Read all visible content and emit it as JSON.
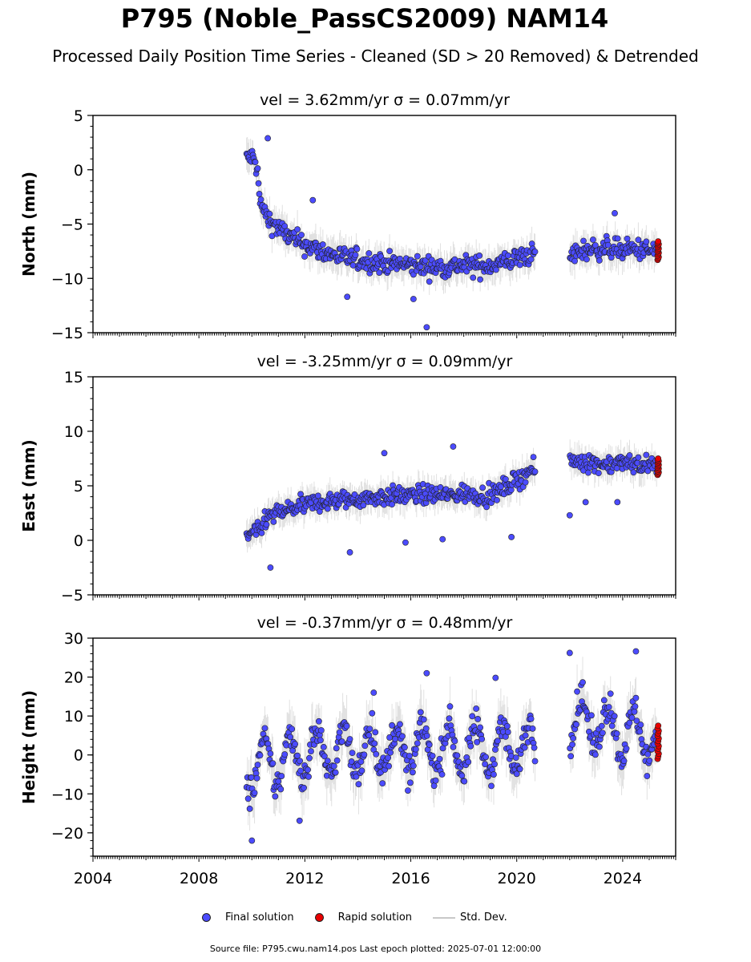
{
  "title": "P795 (Noble_PassCS2009) NAM14",
  "subtitle": "Processed Daily Position Time Series - Cleaned (SD > 20 Removed) & Detrended",
  "footer": "Source file: P795.cwu.nam14.pos  Last epoch plotted: 2025-07-01 12:00:00",
  "legend": {
    "final": "Final solution",
    "rapid": "Rapid solution",
    "stddev": "Std. Dev."
  },
  "colors": {
    "final": "#4b4bff",
    "rapid": "#e80000",
    "stddev": "#c8c8c8",
    "marker_edge": "#222222"
  },
  "chart_data": [
    {
      "type": "scatter",
      "ylabel": "North (mm)",
      "vel_label": "vel = 3.62mm/yr",
      "sigma_label": "σ = 0.07mm/yr",
      "xlim": [
        2004,
        2026
      ],
      "ylim": [
        -15,
        5
      ],
      "yticks": [
        -15,
        -10,
        -5,
        0,
        5
      ],
      "ytick_labels": [
        "−15",
        "−10",
        "−5",
        "0",
        "5"
      ],
      "x_gap": [
        2020.7,
        2022.0
      ],
      "rapid_start": 2025.3,
      "final_series": [
        {
          "x": 2009.8,
          "y": 1.0
        },
        {
          "x": 2010.0,
          "y": 1.2
        },
        {
          "x": 2010.2,
          "y": 0.2
        },
        {
          "x": 2010.3,
          "y": -3.0
        },
        {
          "x": 2010.6,
          "y": -4.5
        },
        {
          "x": 2011.0,
          "y": -5.4
        },
        {
          "x": 2011.5,
          "y": -6.3
        },
        {
          "x": 2012.0,
          "y": -6.9
        },
        {
          "x": 2012.5,
          "y": -7.4
        },
        {
          "x": 2013.0,
          "y": -7.8
        },
        {
          "x": 2013.5,
          "y": -8.1
        },
        {
          "x": 2014.0,
          "y": -8.3
        },
        {
          "x": 2014.5,
          "y": -8.5
        },
        {
          "x": 2015.0,
          "y": -8.6
        },
        {
          "x": 2015.5,
          "y": -8.7
        },
        {
          "x": 2016.0,
          "y": -8.8
        },
        {
          "x": 2016.5,
          "y": -8.9
        },
        {
          "x": 2017.0,
          "y": -9.0
        },
        {
          "x": 2017.5,
          "y": -8.9
        },
        {
          "x": 2018.0,
          "y": -8.8
        },
        {
          "x": 2018.5,
          "y": -8.9
        },
        {
          "x": 2019.0,
          "y": -8.8
        },
        {
          "x": 2019.5,
          "y": -8.5
        },
        {
          "x": 2020.0,
          "y": -8.2
        },
        {
          "x": 2020.5,
          "y": -7.8
        },
        {
          "x": 2022.0,
          "y": -8.0
        },
        {
          "x": 2022.5,
          "y": -7.4
        },
        {
          "x": 2023.0,
          "y": -7.3
        },
        {
          "x": 2023.5,
          "y": -7.2
        },
        {
          "x": 2024.0,
          "y": -7.4
        },
        {
          "x": 2024.5,
          "y": -7.3
        },
        {
          "x": 2025.0,
          "y": -7.5
        },
        {
          "x": 2025.3,
          "y": -7.3
        }
      ],
      "scatter_sd": 0.9,
      "outliers": [
        {
          "x": 2016.6,
          "y": -14.5
        },
        {
          "x": 2010.6,
          "y": 2.9
        },
        {
          "x": 2012.3,
          "y": -2.8
        },
        {
          "x": 2013.6,
          "y": -11.7
        },
        {
          "x": 2016.1,
          "y": -11.9
        },
        {
          "x": 2023.7,
          "y": -4.0
        }
      ],
      "rapid_range": [
        -8.3,
        -6.6
      ]
    },
    {
      "type": "scatter",
      "ylabel": "East (mm)",
      "vel_label": "vel = -3.25mm/yr",
      "sigma_label": "σ = 0.09mm/yr",
      "xlim": [
        2004,
        2026
      ],
      "ylim": [
        -5,
        15
      ],
      "yticks": [
        -5,
        0,
        5,
        10,
        15
      ],
      "ytick_labels": [
        "−5",
        "0",
        "5",
        "10",
        "15"
      ],
      "x_gap": [
        2020.7,
        2022.0
      ],
      "rapid_start": 2025.3,
      "final_series": [
        {
          "x": 2009.8,
          "y": 0.2
        },
        {
          "x": 2010.0,
          "y": 0.8
        },
        {
          "x": 2010.3,
          "y": 0.6
        },
        {
          "x": 2010.5,
          "y": 2.0
        },
        {
          "x": 2011.0,
          "y": 2.5
        },
        {
          "x": 2011.5,
          "y": 2.9
        },
        {
          "x": 2012.0,
          "y": 3.2
        },
        {
          "x": 2012.5,
          "y": 3.5
        },
        {
          "x": 2013.0,
          "y": 3.6
        },
        {
          "x": 2013.5,
          "y": 3.7
        },
        {
          "x": 2014.0,
          "y": 3.8
        },
        {
          "x": 2014.5,
          "y": 3.9
        },
        {
          "x": 2015.0,
          "y": 4.0
        },
        {
          "x": 2015.5,
          "y": 4.1
        },
        {
          "x": 2016.0,
          "y": 4.1
        },
        {
          "x": 2016.5,
          "y": 4.2
        },
        {
          "x": 2017.0,
          "y": 4.2
        },
        {
          "x": 2017.5,
          "y": 4.1
        },
        {
          "x": 2018.0,
          "y": 4.3
        },
        {
          "x": 2018.5,
          "y": 4.2
        },
        {
          "x": 2019.0,
          "y": 4.0
        },
        {
          "x": 2019.5,
          "y": 4.8
        },
        {
          "x": 2020.0,
          "y": 5.5
        },
        {
          "x": 2020.5,
          "y": 6.4
        },
        {
          "x": 2022.0,
          "y": 7.2
        },
        {
          "x": 2022.5,
          "y": 7.3
        },
        {
          "x": 2023.0,
          "y": 7.0
        },
        {
          "x": 2023.5,
          "y": 7.0
        },
        {
          "x": 2024.0,
          "y": 7.1
        },
        {
          "x": 2024.5,
          "y": 7.0
        },
        {
          "x": 2025.0,
          "y": 6.9
        },
        {
          "x": 2025.3,
          "y": 6.8
        }
      ],
      "scatter_sd": 0.8,
      "outliers": [
        {
          "x": 2010.7,
          "y": -2.5
        },
        {
          "x": 2013.7,
          "y": -1.1
        },
        {
          "x": 2015.8,
          "y": -0.2
        },
        {
          "x": 2017.2,
          "y": 0.1
        },
        {
          "x": 2022.0,
          "y": 2.3
        },
        {
          "x": 2019.8,
          "y": 0.3
        },
        {
          "x": 2017.6,
          "y": 8.6
        },
        {
          "x": 2015.0,
          "y": 8.0
        },
        {
          "x": 2023.8,
          "y": 3.5
        },
        {
          "x": 2022.6,
          "y": 3.5
        }
      ],
      "rapid_range": [
        6.0,
        7.5
      ]
    },
    {
      "type": "scatter",
      "ylabel": "Height (mm)",
      "vel_label": "vel = -0.37mm/yr",
      "sigma_label": "σ = 0.48mm/yr",
      "xlim": [
        2004,
        2026
      ],
      "ylim": [
        -26,
        30
      ],
      "yticks": [
        -20,
        -10,
        0,
        10,
        20,
        30
      ],
      "ytick_labels": [
        "−20",
        "−10",
        "0",
        "10",
        "20",
        "30"
      ],
      "xticks": [
        2004,
        2008,
        2012,
        2016,
        2020,
        2024
      ],
      "xtick_labels": [
        "2004",
        "2008",
        "2012",
        "2016",
        "2020",
        "2024"
      ],
      "x_gap": [
        2020.7,
        2022.0
      ],
      "rapid_start": 2025.3,
      "seasonal_amplitude": 6,
      "final_series": [
        {
          "x": 2009.8,
          "y": -4.0
        },
        {
          "x": 2012.0,
          "y": 0.5
        },
        {
          "x": 2014.0,
          "y": 1.0
        },
        {
          "x": 2016.0,
          "y": 1.5
        },
        {
          "x": 2018.0,
          "y": 1.5
        },
        {
          "x": 2020.5,
          "y": 2.0
        },
        {
          "x": 2022.0,
          "y": 9.0
        },
        {
          "x": 2023.0,
          "y": 8.0
        },
        {
          "x": 2024.0,
          "y": 6.0
        },
        {
          "x": 2025.3,
          "y": 4.0
        }
      ],
      "scatter_sd": 4.0,
      "outliers": [
        {
          "x": 2010.0,
          "y": -22.0
        },
        {
          "x": 2016.6,
          "y": 21.0
        },
        {
          "x": 2022.0,
          "y": 26.2
        },
        {
          "x": 2024.5,
          "y": 26.6
        },
        {
          "x": 2011.8,
          "y": -16.9
        },
        {
          "x": 2019.2,
          "y": 19.8
        },
        {
          "x": 2014.6,
          "y": 16.0
        }
      ],
      "rapid_range": [
        -1.0,
        7.5
      ]
    }
  ]
}
